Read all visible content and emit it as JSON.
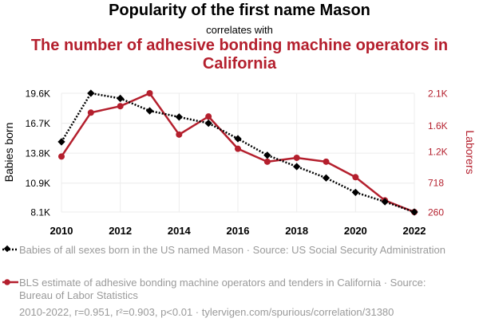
{
  "header": {
    "title": "Popularity of the first name Mason",
    "subtitle": "correlates with",
    "title2": "The number of adhesive bonding machine operators in California"
  },
  "legend": {
    "series1": "Babies of all sexes born in the US named Mason · Source: US Social Security Administration",
    "series2": "BLS estimate of adhesive bonding machine operators and tenders in California · Source: Bureau of Labor Statistics"
  },
  "footer": "2010-2022, r=0.951, r²=0.903, p<0.01 · tylervigen.com/spurious/correlation/31380",
  "colors": {
    "series1": "#000000",
    "series2": "#b41f2d",
    "grid": "#ececec"
  },
  "chart_data": {
    "type": "line",
    "x": [
      2010,
      2011,
      2012,
      2013,
      2014,
      2015,
      2016,
      2017,
      2018,
      2019,
      2020,
      2021,
      2022
    ],
    "xlim": [
      2010,
      2022
    ],
    "x_ticks": [
      "2010",
      "2012",
      "2014",
      "2016",
      "2018",
      "2020",
      "2022"
    ],
    "left_axis": {
      "label": "Babies born",
      "ylim": [
        8100,
        19600
      ],
      "tick_values": [
        8100,
        10900,
        13800,
        16700,
        19600
      ],
      "tick_labels": [
        "8.1K",
        "10.9K",
        "13.8K",
        "16.7K",
        "19.6K"
      ]
    },
    "right_axis": {
      "label": "Laborers",
      "ylim": [
        260,
        2100
      ],
      "tick_values": [
        260,
        718,
        1200,
        1600,
        2100
      ],
      "tick_labels": [
        "260",
        "718",
        "1.2K",
        "1.6K",
        "2.1K"
      ]
    },
    "series": [
      {
        "axis": "left",
        "style": "dotted-diamond",
        "values": [
          14900,
          19600,
          19100,
          17900,
          17300,
          16700,
          15200,
          13600,
          12500,
          11400,
          10000,
          9100,
          8100
        ]
      },
      {
        "axis": "right",
        "style": "solid-circle",
        "values": [
          1120,
          1800,
          1900,
          2100,
          1460,
          1740,
          1240,
          1040,
          1100,
          1040,
          800,
          440,
          260
        ]
      }
    ]
  }
}
